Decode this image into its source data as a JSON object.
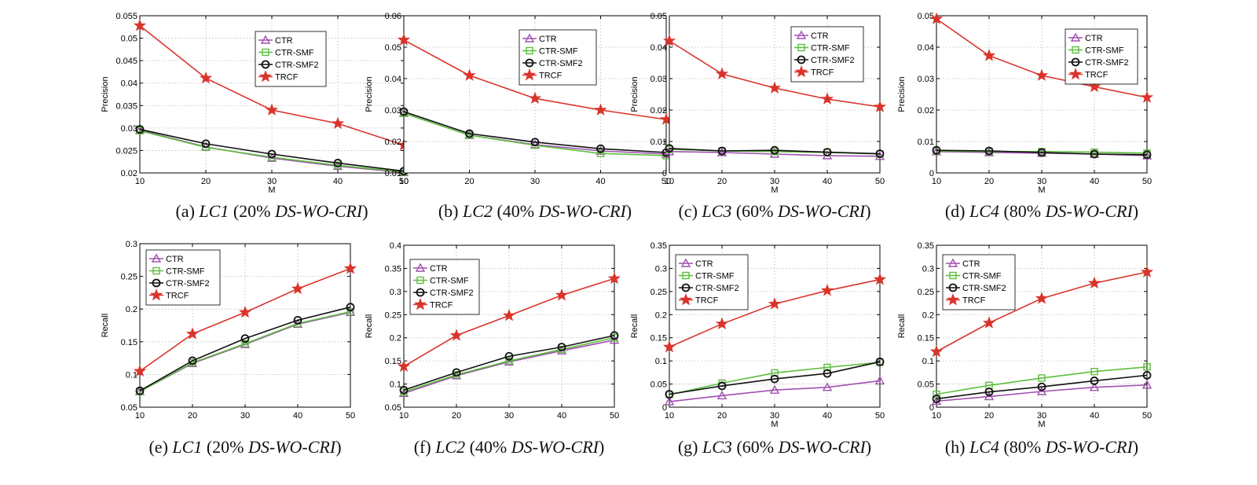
{
  "series_names": [
    "CTR",
    "CTR-SMF",
    "CTR-SMF2",
    "TRCF"
  ],
  "series_colors": [
    "#a050b0",
    "#5cbf3c",
    "#111111",
    "#d9342b"
  ],
  "series_markers": [
    "triangle",
    "square",
    "circle",
    "star"
  ],
  "chart_data": [
    {
      "type": "line",
      "caption_tag": "(a)",
      "caption_name": "LC1",
      "caption_pct": "(20%",
      "caption_ds": "DS-WO-CRI",
      "caption_close": ")",
      "xlabel": "M",
      "ylabel": "Precision",
      "x": [
        10,
        20,
        30,
        40,
        50
      ],
      "xticks": [
        "10",
        "20",
        "30",
        "40",
        "50"
      ],
      "ylim": [
        0.02,
        0.055
      ],
      "yticks": [
        0.02,
        0.025,
        0.03,
        0.035,
        0.04,
        0.045,
        0.05,
        0.055
      ],
      "ytick_labels": [
        "0.02",
        "0.025",
        "0.03",
        "0.035",
        "0.04",
        "0.045",
        "0.05",
        "0.055"
      ],
      "grid": true,
      "legend": "top-right",
      "series": [
        {
          "name": "CTR",
          "values": [
            0.0295,
            0.0258,
            0.0233,
            0.0215,
            0.0201
          ]
        },
        {
          "name": "CTR-SMF",
          "values": [
            0.0294,
            0.0257,
            0.0235,
            0.0217,
            0.0202
          ]
        },
        {
          "name": "CTR-SMF2",
          "values": [
            0.0297,
            0.0265,
            0.0242,
            0.0222,
            0.0204
          ]
        },
        {
          "name": "TRCF",
          "values": [
            0.0528,
            0.0411,
            0.034,
            0.031,
            0.0262
          ]
        }
      ]
    },
    {
      "type": "line",
      "caption_tag": "(b)",
      "caption_name": "LC2",
      "caption_pct": "(40%",
      "caption_ds": "DS-WO-CRI",
      "caption_close": ")",
      "xlabel": "",
      "ylabel": "Precision",
      "x": [
        10,
        20,
        30,
        40,
        50
      ],
      "xticks": [
        "10",
        "20",
        "30",
        "40",
        "50"
      ],
      "ylim": [
        0.01,
        0.06
      ],
      "yticks": [
        0.01,
        0.02,
        0.03,
        0.04,
        0.05,
        0.06
      ],
      "ytick_labels": [
        "0.01",
        "0.02",
        "0.03",
        "0.04",
        "0.05",
        "0.06"
      ],
      "grid": true,
      "legend": "top-right",
      "series": [
        {
          "name": "CTR",
          "values": [
            0.029,
            0.022,
            0.019,
            0.017,
            0.016
          ]
        },
        {
          "name": "CTR-SMF",
          "values": [
            0.029,
            0.022,
            0.0188,
            0.0162,
            0.0155
          ]
        },
        {
          "name": "CTR-SMF2",
          "values": [
            0.0295,
            0.0225,
            0.0198,
            0.0177,
            0.0165
          ]
        },
        {
          "name": "TRCF",
          "values": [
            0.0523,
            0.041,
            0.0337,
            0.03,
            0.027
          ]
        }
      ]
    },
    {
      "type": "line",
      "caption_tag": "(c)",
      "caption_name": "LC3",
      "caption_pct": "(60%",
      "caption_ds": "DS-WO-CRI",
      "caption_close": ")",
      "xlabel": "M",
      "ylabel": "Precision",
      "x": [
        10,
        20,
        30,
        40,
        50
      ],
      "xticks": [
        "10",
        "20",
        "30",
        "40",
        "50"
      ],
      "ylim": [
        0,
        0.05
      ],
      "yticks": [
        0,
        0.01,
        0.02,
        0.03,
        0.04,
        0.05
      ],
      "ytick_labels": [
        "0",
        "0.01",
        "0.02",
        "0.03",
        "0.04",
        "0.05"
      ],
      "grid": true,
      "legend": "top-right",
      "series": [
        {
          "name": "CTR",
          "values": [
            0.0068,
            0.0065,
            0.006,
            0.0055,
            0.0053
          ]
        },
        {
          "name": "CTR-SMF",
          "values": [
            0.0075,
            0.007,
            0.0068,
            0.0065,
            0.006
          ]
        },
        {
          "name": "CTR-SMF2",
          "values": [
            0.0078,
            0.007,
            0.0072,
            0.0066,
            0.0061
          ]
        },
        {
          "name": "TRCF",
          "values": [
            0.042,
            0.0315,
            0.027,
            0.0235,
            0.021
          ]
        }
      ]
    },
    {
      "type": "line",
      "caption_tag": "(d)",
      "caption_name": "LC4",
      "caption_pct": "(80%",
      "caption_ds": "DS-WO-CRI",
      "caption_close": ")",
      "xlabel": "M",
      "ylabel": "Precision",
      "x": [
        10,
        20,
        30,
        40,
        50
      ],
      "xticks": [
        "10",
        "20",
        "30",
        "40",
        "50"
      ],
      "ylim": [
        0,
        0.05
      ],
      "yticks": [
        0,
        0.01,
        0.02,
        0.03,
        0.04,
        0.05
      ],
      "ytick_labels": [
        "0",
        "0.01",
        "0.02",
        "0.03",
        "0.04",
        "0.05"
      ],
      "grid": true,
      "legend": "top-right",
      "series": [
        {
          "name": "CTR",
          "values": [
            0.0068,
            0.0065,
            0.0063,
            0.006,
            0.0055
          ]
        },
        {
          "name": "CTR-SMF",
          "values": [
            0.007,
            0.0068,
            0.0068,
            0.0066,
            0.0063
          ]
        },
        {
          "name": "CTR-SMF2",
          "values": [
            0.0072,
            0.007,
            0.0065,
            0.006,
            0.0058
          ]
        },
        {
          "name": "TRCF",
          "values": [
            0.049,
            0.0373,
            0.031,
            0.0274,
            0.024
          ]
        }
      ]
    },
    {
      "type": "line",
      "caption_tag": "(e)",
      "caption_name": "LC1",
      "caption_pct": "(20%",
      "caption_ds": "DS-WO-CRI",
      "caption_close": ")",
      "xlabel": "",
      "ylabel": "Recall",
      "x": [
        10,
        20,
        30,
        40,
        50
      ],
      "xticks": [
        "10",
        "20",
        "30",
        "40",
        "50"
      ],
      "ylim": [
        0.05,
        0.3
      ],
      "yticks": [
        0.05,
        0.1,
        0.15,
        0.2,
        0.25,
        0.3
      ],
      "ytick_labels": [
        "0.05",
        "0.1",
        "0.15",
        "0.2",
        "0.25",
        "0.3"
      ],
      "grid": true,
      "legend": "top-left",
      "series": [
        {
          "name": "CTR",
          "values": [
            0.074,
            0.117,
            0.146,
            0.177,
            0.195
          ]
        },
        {
          "name": "CTR-SMF",
          "values": [
            0.074,
            0.118,
            0.147,
            0.178,
            0.196
          ]
        },
        {
          "name": "CTR-SMF2",
          "values": [
            0.075,
            0.121,
            0.155,
            0.183,
            0.203
          ]
        },
        {
          "name": "TRCF",
          "values": [
            0.105,
            0.162,
            0.195,
            0.231,
            0.262
          ]
        }
      ]
    },
    {
      "type": "line",
      "caption_tag": "(f)",
      "caption_name": "LC2",
      "caption_pct": "(40%",
      "caption_ds": "DS-WO-CRI",
      "caption_close": ")",
      "xlabel": "",
      "ylabel": "Recall",
      "x": [
        10,
        20,
        30,
        40,
        50
      ],
      "xticks": [
        "10",
        "20",
        "30",
        "40",
        "50"
      ],
      "ylim": [
        0.05,
        0.4
      ],
      "yticks": [
        0.05,
        0.1,
        0.15,
        0.2,
        0.25,
        0.3,
        0.35,
        0.4
      ],
      "ytick_labels": [
        "0.05",
        "0.1",
        "0.15",
        "0.2",
        "0.25",
        "0.3",
        "0.35",
        "0.4"
      ],
      "grid": true,
      "legend": "top-left",
      "series": [
        {
          "name": "CTR",
          "values": [
            0.08,
            0.118,
            0.148,
            0.172,
            0.195
          ]
        },
        {
          "name": "CTR-SMF",
          "values": [
            0.083,
            0.12,
            0.15,
            0.175,
            0.2
          ]
        },
        {
          "name": "CTR-SMF2",
          "values": [
            0.087,
            0.125,
            0.16,
            0.18,
            0.205
          ]
        },
        {
          "name": "TRCF",
          "values": [
            0.138,
            0.205,
            0.248,
            0.292,
            0.328
          ]
        }
      ]
    },
    {
      "type": "line",
      "caption_tag": "(g)",
      "caption_name": "LC3",
      "caption_pct": "(60%",
      "caption_ds": "DS-WO-CRI",
      "caption_close": ")",
      "xlabel": "M",
      "ylabel": "Recall",
      "x": [
        10,
        20,
        30,
        40,
        50
      ],
      "xticks": [
        "10",
        "20",
        "30",
        "40",
        "50"
      ],
      "ylim": [
        0,
        0.35
      ],
      "yticks": [
        0,
        0.05,
        0.1,
        0.15,
        0.2,
        0.25,
        0.3,
        0.35
      ],
      "ytick_labels": [
        "0",
        "0.05",
        "0.1",
        "0.15",
        "0.2",
        "0.25",
        "0.3",
        "0.35"
      ],
      "grid": true,
      "legend": "top-left",
      "series": [
        {
          "name": "CTR",
          "values": [
            0.012,
            0.025,
            0.037,
            0.043,
            0.057
          ]
        },
        {
          "name": "CTR-SMF",
          "values": [
            0.027,
            0.052,
            0.074,
            0.086,
            0.097
          ]
        },
        {
          "name": "CTR-SMF2",
          "values": [
            0.028,
            0.046,
            0.061,
            0.073,
            0.098
          ]
        },
        {
          "name": "TRCF",
          "values": [
            0.13,
            0.18,
            0.223,
            0.252,
            0.276
          ]
        }
      ]
    },
    {
      "type": "line",
      "caption_tag": "(h)",
      "caption_name": "LC4",
      "caption_pct": "(80%",
      "caption_ds": "DS-WO-CRI",
      "caption_close": ")",
      "xlabel": "M",
      "ylabel": "Recall",
      "x": [
        10,
        20,
        30,
        40,
        50
      ],
      "xticks": [
        "10",
        "20",
        "30",
        "40",
        "50"
      ],
      "ylim": [
        0,
        0.35
      ],
      "yticks": [
        0,
        0.05,
        0.1,
        0.15,
        0.2,
        0.25,
        0.3,
        0.35
      ],
      "ytick_labels": [
        "0",
        "0.05",
        "0.1",
        "0.15",
        "0.2",
        "0.25",
        "0.3",
        "0.35"
      ],
      "grid": true,
      "legend": "top-left",
      "series": [
        {
          "name": "CTR",
          "values": [
            0.013,
            0.023,
            0.034,
            0.043,
            0.048
          ]
        },
        {
          "name": "CTR-SMF",
          "values": [
            0.028,
            0.047,
            0.063,
            0.077,
            0.087
          ]
        },
        {
          "name": "CTR-SMF2",
          "values": [
            0.018,
            0.033,
            0.044,
            0.057,
            0.069
          ]
        },
        {
          "name": "TRCF",
          "values": [
            0.12,
            0.182,
            0.235,
            0.268,
            0.292
          ]
        }
      ]
    }
  ]
}
